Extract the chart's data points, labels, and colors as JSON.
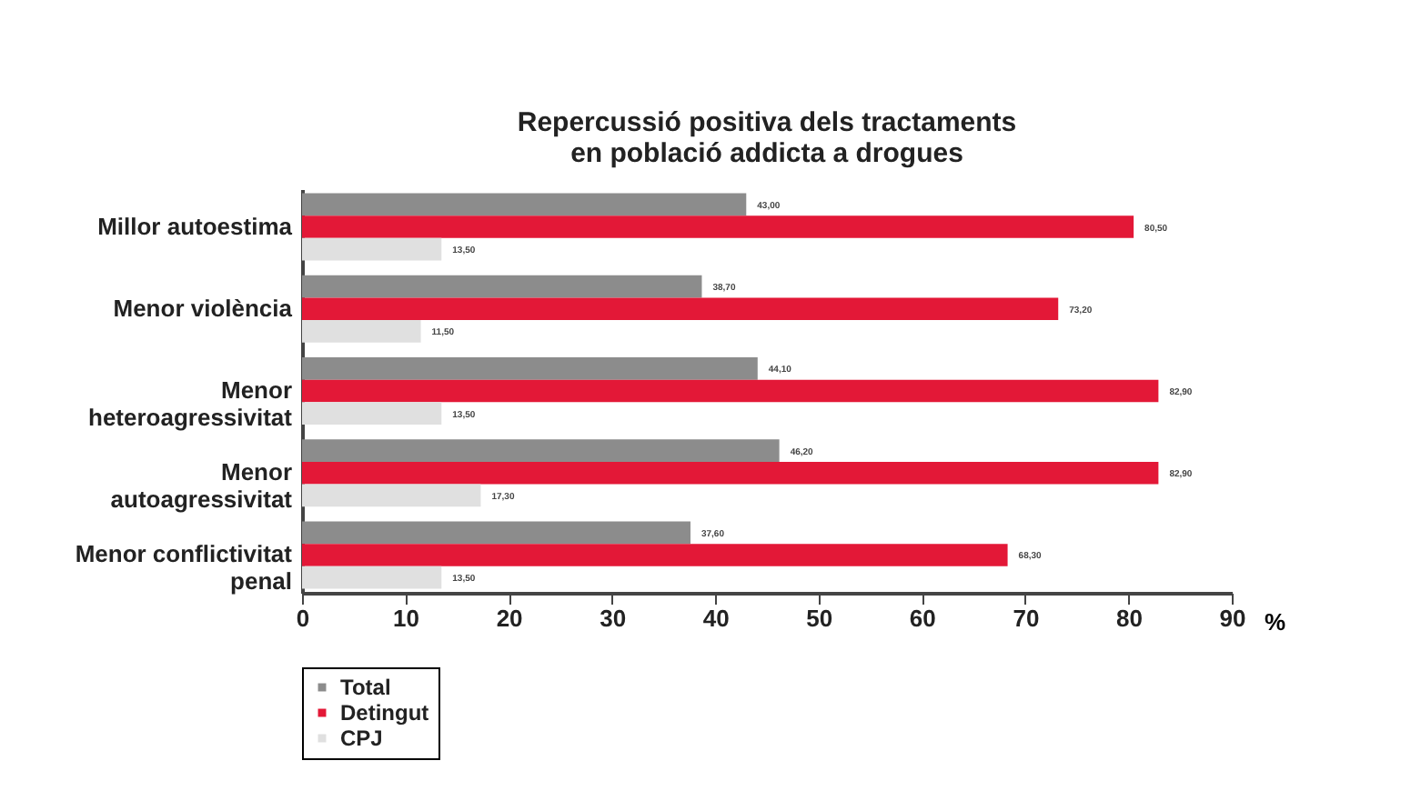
{
  "chart_data": {
    "type": "bar",
    "orientation": "horizontal",
    "title": [
      "Repercussió  positiva dels tractaments",
      "en població addicta a drogues"
    ],
    "categories": [
      "Millor autoestima",
      "Menor violència",
      "Menor\nheteroagressivitat",
      "Menor\nautoagressivitat",
      "Menor conflictivitat\npenal"
    ],
    "series": [
      {
        "name": "Total",
        "color": "#8c8c8c",
        "values": [
          43.0,
          38.7,
          44.1,
          46.2,
          37.6
        ],
        "value_labels": [
          "43,00",
          "38,70",
          "44,10",
          "46,20",
          "37,60"
        ]
      },
      {
        "name": "Detingut",
        "color": "#e31837",
        "values": [
          80.5,
          73.2,
          82.9,
          82.9,
          68.3
        ],
        "value_labels": [
          "80,50",
          "73,20",
          "82,90",
          "82,90",
          "68,30"
        ]
      },
      {
        "name": "CPJ",
        "color": "#e0e0e0",
        "values": [
          13.5,
          11.5,
          13.5,
          17.3,
          13.5
        ],
        "value_labels": [
          "13,50",
          "11,50",
          "13,50",
          "17,30",
          "13,50"
        ]
      }
    ],
    "xlim": [
      0,
      90
    ],
    "xticks": [
      0,
      10,
      20,
      30,
      40,
      50,
      60,
      70,
      80,
      90
    ],
    "xlabel": "%",
    "grid": false,
    "legend": "bottom left"
  }
}
